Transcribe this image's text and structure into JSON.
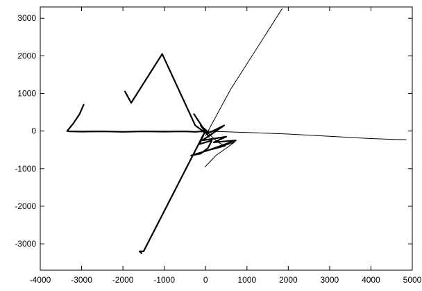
{
  "chart_data": {
    "type": "line",
    "title": "",
    "xlabel": "",
    "ylabel": "",
    "xlim": [
      -4000,
      5000
    ],
    "ylim": [
      -3700,
      3300
    ],
    "grid": false,
    "legend": "none",
    "line_color": "#000000",
    "x_ticks": [
      -4000,
      -3000,
      -2000,
      -1000,
      0,
      1000,
      2000,
      3000,
      4000,
      5000
    ],
    "y_ticks": [
      -3000,
      -2000,
      -1000,
      0,
      1000,
      2000,
      3000
    ],
    "series": [
      {
        "style": "thick",
        "x": [
          -2950,
          -3050,
          -3200,
          -3350,
          -3300,
          -3000,
          -2500,
          -2000,
          -1500,
          -1000,
          -500,
          -250,
          -100,
          0
        ],
        "y": [
          700,
          450,
          200,
          0,
          -10,
          -15,
          -10,
          -20,
          -10,
          -15,
          -10,
          -20,
          -10,
          -20
        ]
      },
      {
        "style": "thin",
        "x": [
          0,
          500,
          1000,
          1500,
          2000,
          2500,
          3000,
          3500,
          4000,
          4500,
          4850
        ],
        "y": [
          0,
          -20,
          -40,
          -60,
          -80,
          -110,
          -140,
          -170,
          -200,
          -220,
          -230
        ]
      },
      {
        "style": "thick",
        "x": [
          -1950,
          -1800,
          -1050,
          -250,
          0
        ],
        "y": [
          1050,
          750,
          2050,
          150,
          -50
        ]
      },
      {
        "style": "thick",
        "x": [
          -280,
          80,
          -120,
          80,
          450,
          -80,
          500,
          200,
          730,
          100,
          -350,
          -120,
          60,
          150,
          -150,
          -30,
          -1500,
          -1600,
          -1550
        ],
        "y": [
          450,
          -150,
          150,
          -50,
          150,
          -250,
          -150,
          -300,
          -250,
          -500,
          -650,
          -600,
          -450,
          -250,
          -350,
          -50,
          -3200,
          -3200,
          -3250
        ]
      },
      {
        "style": "thin",
        "x": [
          0,
          600,
          1850
        ],
        "y": [
          -120,
          1100,
          3250
        ]
      },
      {
        "style": "thin",
        "x": [
          0,
          300,
          480,
          150,
          700,
          250,
          -10
        ],
        "y": [
          0,
          -300,
          -400,
          -500,
          -300,
          -650,
          -950
        ]
      }
    ]
  }
}
